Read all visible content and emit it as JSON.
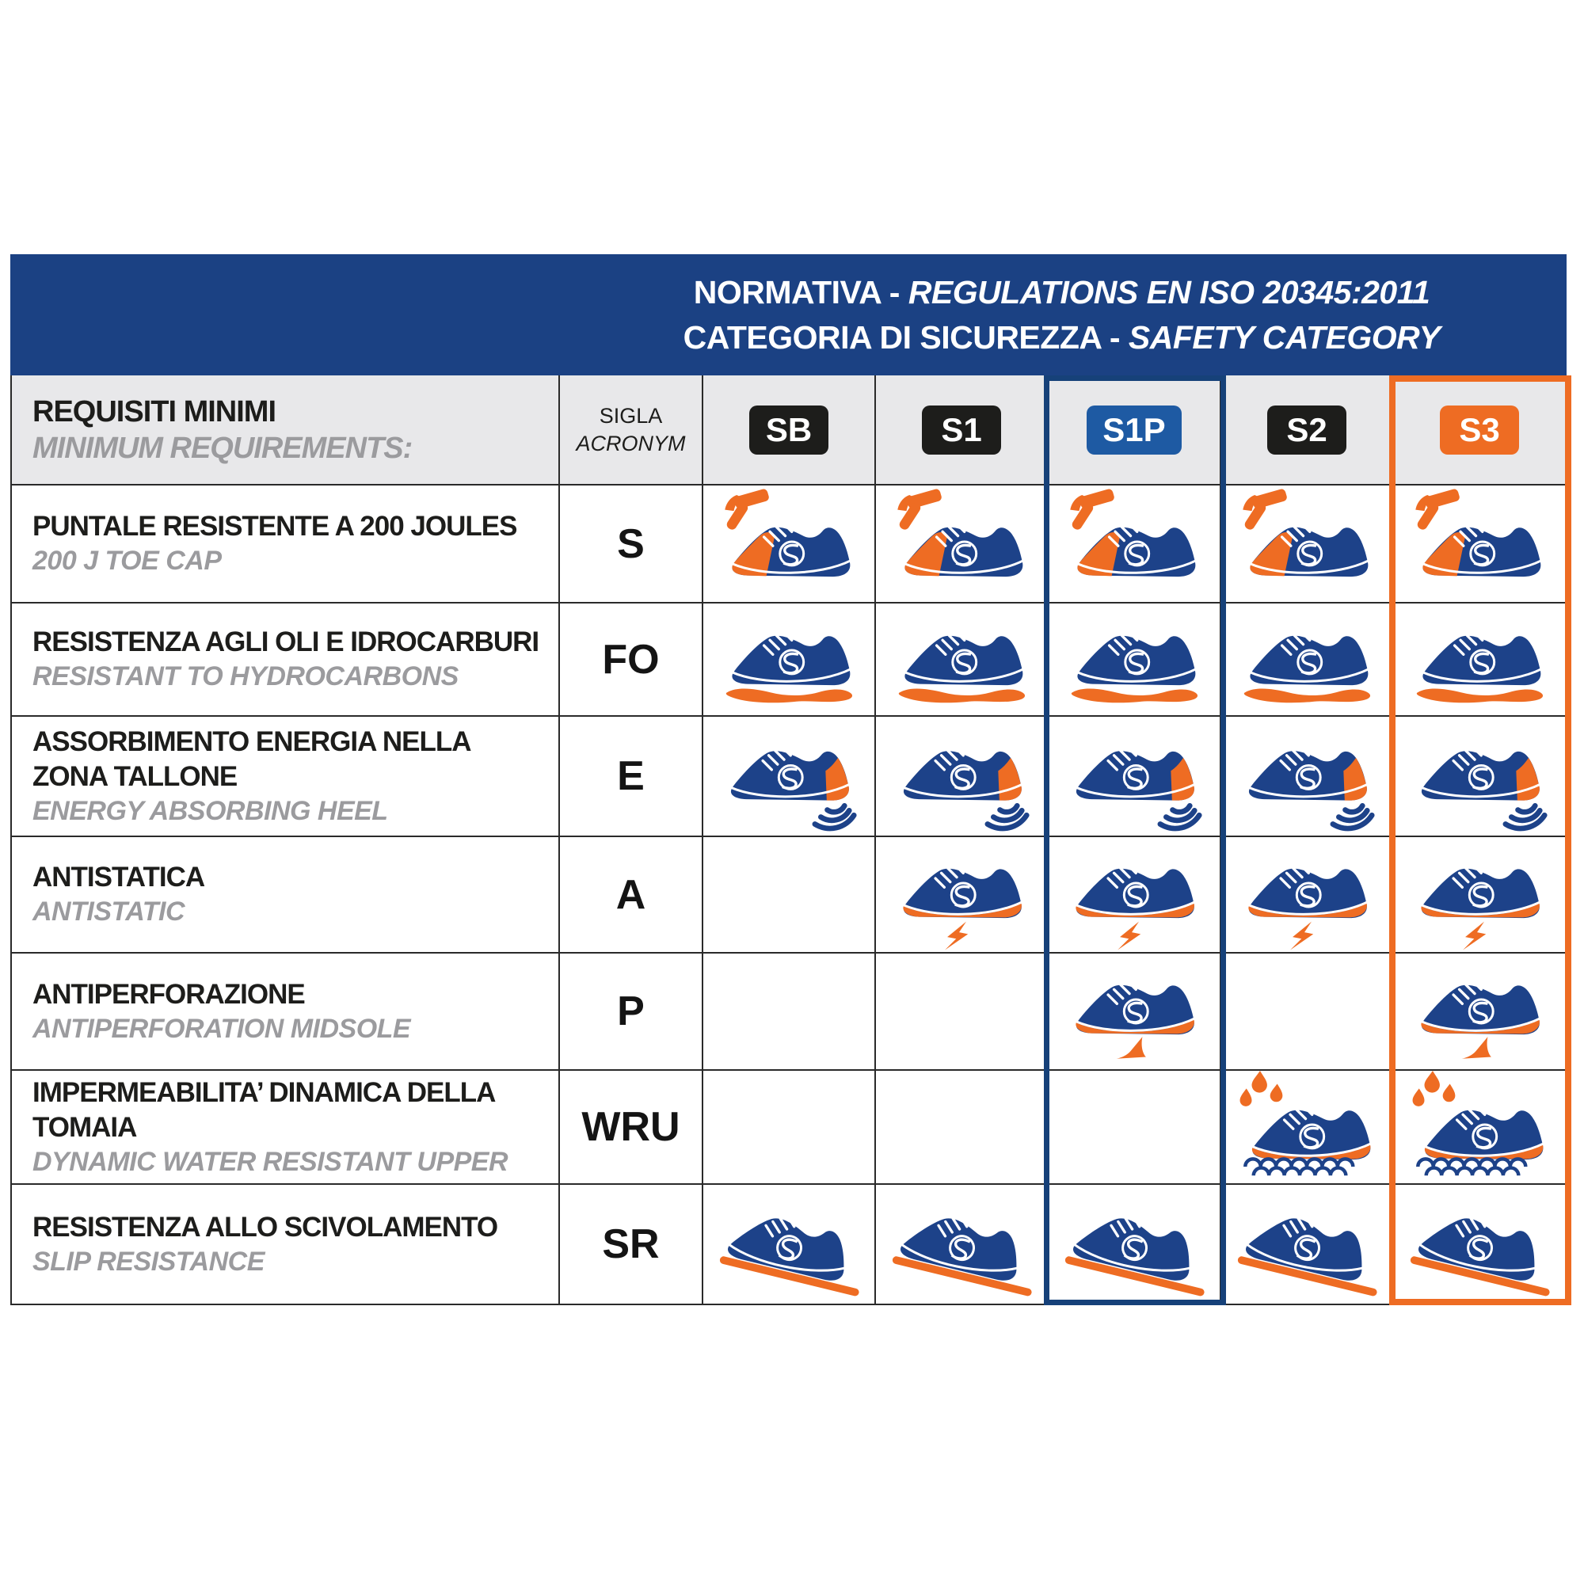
{
  "banner": {
    "line1_regular": "NORMATIVA - ",
    "line1_italic": "REGULATIONS EN ISO 20345:2011",
    "line2_regular": "CATEGORIA DI SICUREZZA - ",
    "line2_italic": "SAFETY CATEGORY"
  },
  "header": {
    "requirements_title": "REQUISITI MINIMI",
    "requirements_subtitle": "MINIMUM REQUIREMENTS:",
    "sigla_line1": "SIGLA",
    "sigla_line2": "ACRONYM",
    "categories": [
      {
        "label": "SB",
        "style": "black"
      },
      {
        "label": "S1",
        "style": "black"
      },
      {
        "label": "S1P",
        "style": "blue"
      },
      {
        "label": "S2",
        "style": "black"
      },
      {
        "label": "S3",
        "style": "orange"
      }
    ]
  },
  "rows": [
    {
      "title": "PUNTALE RESISTENTE A 200 JOULES",
      "subtitle": "200 J TOE CAP",
      "acronym": "S",
      "icon": "toe-cap-hammer",
      "cells": [
        1,
        1,
        1,
        1,
        1
      ]
    },
    {
      "title": "RESISTENZA AGLI OLI E IDROCARBURI",
      "subtitle": "RESISTANT TO HYDROCARBONS",
      "acronym": "FO",
      "icon": "oil-puddle",
      "cells": [
        1,
        1,
        1,
        1,
        1
      ]
    },
    {
      "title": "ASSORBIMENTO ENERGIA NELLA ZONA TALLONE",
      "subtitle": "ENERGY ABSORBING HEEL",
      "acronym": "E",
      "icon": "energy-heel",
      "cells": [
        1,
        1,
        1,
        1,
        1
      ]
    },
    {
      "title": "ANTISTATICA",
      "subtitle": "ANTISTATIC",
      "acronym": "A",
      "icon": "antistatic-bolt",
      "cells": [
        0,
        1,
        1,
        1,
        1
      ]
    },
    {
      "title": "ANTIPERFORAZIONE",
      "subtitle": "ANTIPERFORATION MIDSOLE",
      "acronym": "P",
      "icon": "perforation-nail",
      "cells": [
        0,
        0,
        1,
        0,
        1
      ]
    },
    {
      "title": "IMPERMEABILITA’ DINAMICA DELLA TOMAIA",
      "subtitle": "DYNAMIC WATER RESISTANT UPPER",
      "acronym": "WRU",
      "icon": "water-resistant",
      "cells": [
        0,
        0,
        0,
        1,
        1
      ]
    },
    {
      "title": "RESISTENZA ALLO SCIVOLAMENTO",
      "subtitle": "SLIP RESISTANCE",
      "acronym": "SR",
      "icon": "slip-ramp",
      "cells": [
        1,
        1,
        1,
        1,
        1
      ]
    }
  ],
  "colors": {
    "banner_navy": "#1b4183",
    "column_outline_navy": "#164179",
    "badge_blue": "#1e5aa3",
    "orange": "#ee6c23",
    "badge_black": "#1d1d1b",
    "shoe_navy": "#1d4289",
    "header_gray": "#e8e8ea",
    "subtitle_gray": "#9b9b9e"
  }
}
